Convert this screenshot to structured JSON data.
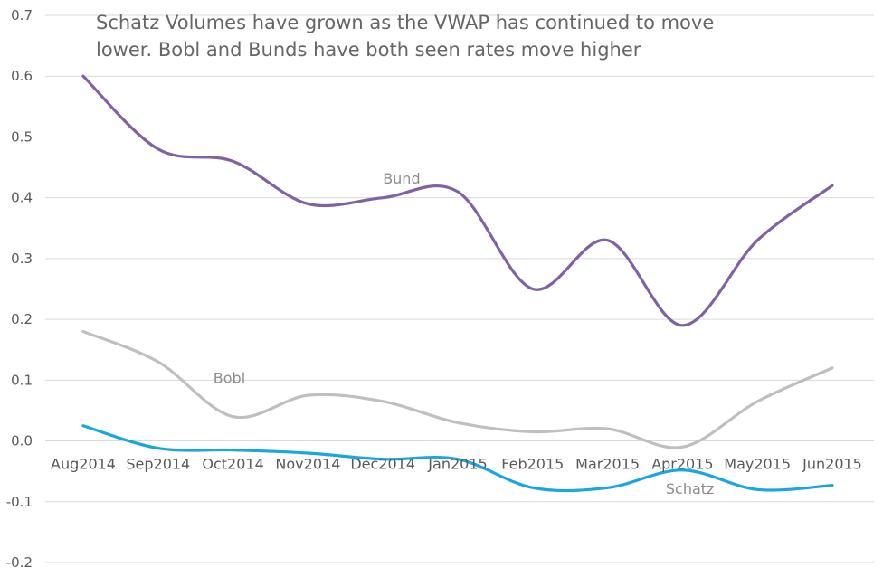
{
  "chart_data": {
    "type": "line",
    "title": "",
    "xlabel": "",
    "ylabel": "",
    "annotation_lines": [
      "Schatz Volumes have grown as the VWAP has continued to move",
      "lower. Bobl and Bunds have both seen rates move higher"
    ],
    "categories": [
      "Aug2014",
      "Sep2014",
      "Oct2014",
      "Nov2014",
      "Dec2014",
      "Jan2015",
      "Feb2015",
      "Mar2015",
      "Apr2015",
      "May2015",
      "Jun2015"
    ],
    "ylim": [
      -0.2,
      0.7
    ],
    "yticks": [
      -0.2,
      -0.1,
      0.0,
      0.1,
      0.2,
      0.3,
      0.4,
      0.5,
      0.6,
      0.7
    ],
    "ytick_labels": [
      "-0.2",
      "-0.1",
      "0.0",
      "0.1",
      "0.2",
      "0.3",
      "0.4",
      "0.5",
      "0.6",
      "0.7"
    ],
    "grid": true,
    "legend": "none",
    "series": [
      {
        "name": "Bund",
        "color": "#7f62a1",
        "values": [
          0.6,
          0.48,
          0.46,
          0.39,
          0.4,
          0.41,
          0.25,
          0.33,
          0.19,
          0.33,
          0.42
        ]
      },
      {
        "name": "Bobl",
        "color": "#bfbfbf",
        "values": [
          0.18,
          0.13,
          0.04,
          0.075,
          0.065,
          0.03,
          0.015,
          0.02,
          -0.01,
          0.065,
          0.12
        ]
      },
      {
        "name": "Schatz",
        "color": "#1aa7e0",
        "values": [
          0.025,
          -0.012,
          -0.015,
          -0.02,
          -0.03,
          -0.03,
          -0.077,
          -0.077,
          -0.048,
          -0.08,
          -0.073
        ]
      }
    ]
  }
}
